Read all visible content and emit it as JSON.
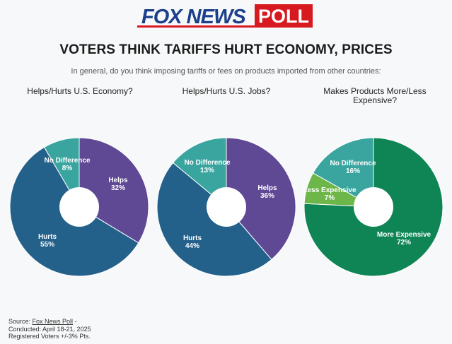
{
  "logo": {
    "brand": "FOX NEWS",
    "badge": "POLL",
    "colors": {
      "blue": "#1b3f8b",
      "red": "#d71920"
    }
  },
  "headline": "VOTERS THINK TARIFFS HURT ECONOMY, PRICES",
  "subhead": "In general, do you think imposing tariffs or fees on products imported from other countries:",
  "source": {
    "prefix": "Source: ",
    "link": "Fox News Poll",
    "suffix": " -",
    "conducted": "Conducted: April 18-21, 2025",
    "sample": "Registered Voters +/-3% Pts."
  },
  "chart_data": [
    {
      "type": "pie",
      "title": [
        "Helps/Hurts U.S. Economy?"
      ],
      "slices": [
        {
          "label": "Helps",
          "value": 32,
          "display": "32%",
          "color": "#5f4894"
        },
        {
          "label": "Hurts",
          "value": 55,
          "display": "55%",
          "color": "#23618b"
        },
        {
          "label": "No Difference",
          "value": 8,
          "display": "8%",
          "color": "#3aa59f"
        }
      ]
    },
    {
      "type": "pie",
      "title": [
        "Helps/Hurts U.S. Jobs?"
      ],
      "slices": [
        {
          "label": "Helps",
          "value": 36,
          "display": "36%",
          "color": "#5f4894"
        },
        {
          "label": "Hurts",
          "value": 44,
          "display": "44%",
          "color": "#23618b"
        },
        {
          "label": "No Difference",
          "value": 13,
          "display": "13%",
          "color": "#3aa59f"
        }
      ]
    },
    {
      "type": "pie",
      "title": [
        "Makes Products More/Less",
        "Expensive?"
      ],
      "slices": [
        {
          "label": "More Expensive",
          "value": 72,
          "display": "72%",
          "color": "#0f8556"
        },
        {
          "label": "Less Expensive",
          "value": 7,
          "display": "7%",
          "color": "#6db64a"
        },
        {
          "label": "No Difference",
          "value": 16,
          "display": "16%",
          "color": "#3aa59f"
        }
      ]
    }
  ]
}
